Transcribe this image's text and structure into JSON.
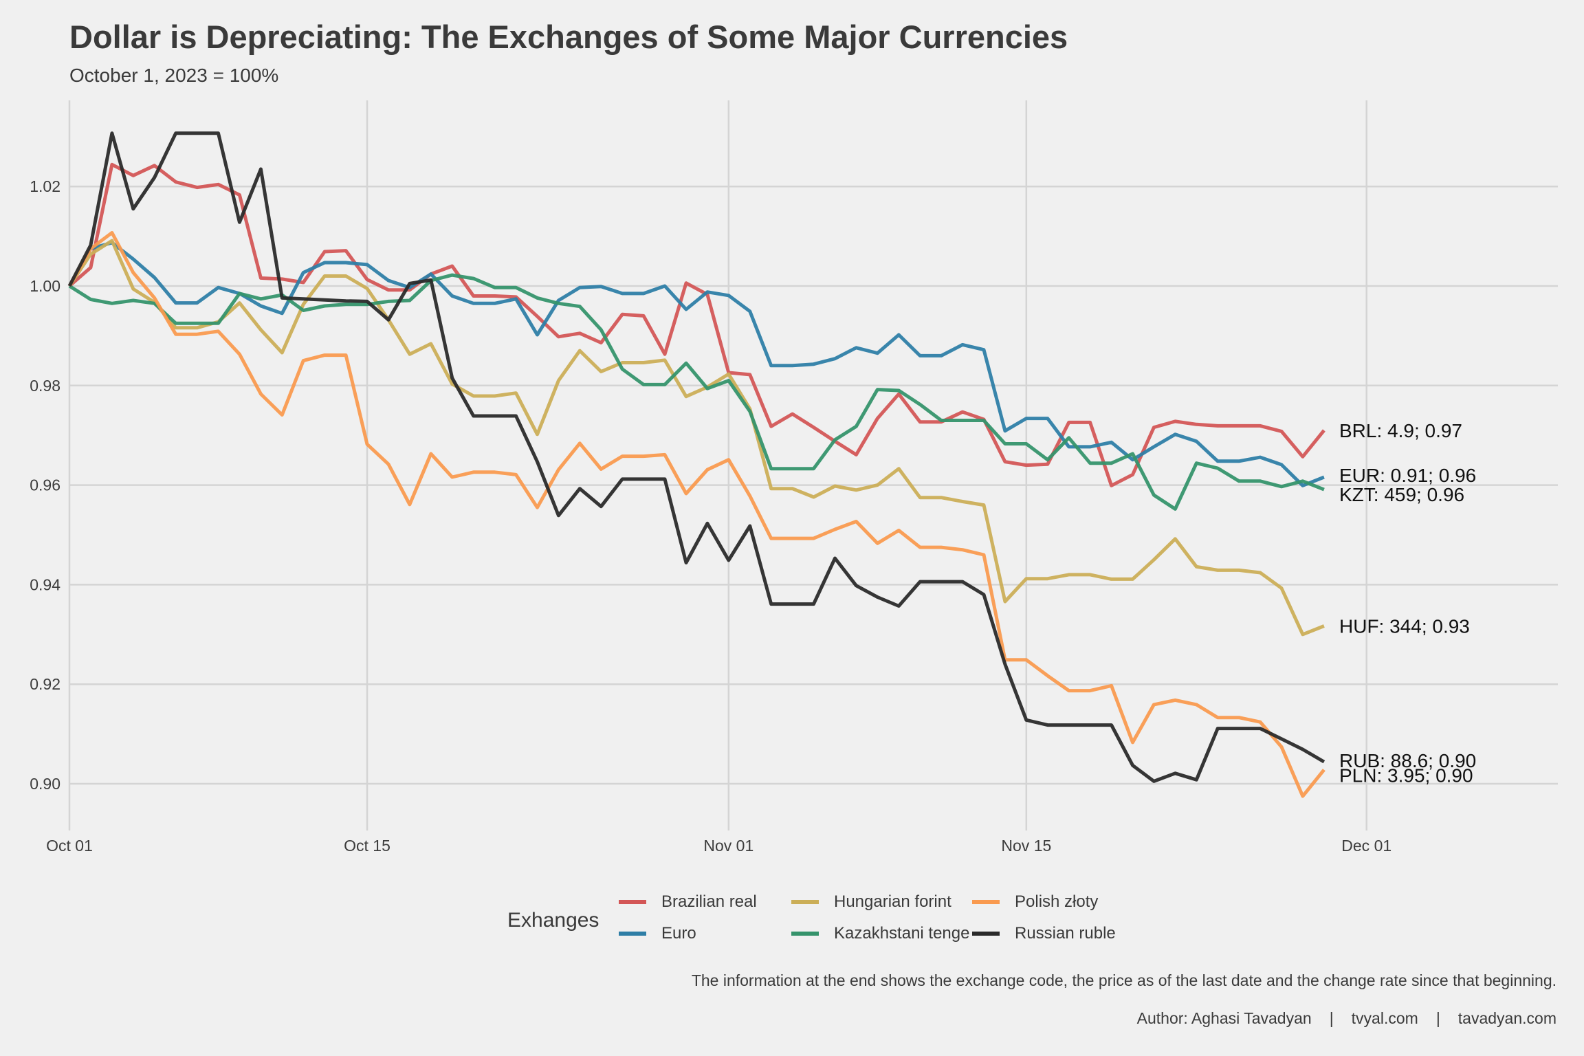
{
  "header": {
    "title": "Dollar is Depreciating: The Exchanges of Some Major Currencies",
    "subtitle": "October 1, 2023 = 100%"
  },
  "caption": {
    "note": "The information at the end shows the exchange code, the price as of the last date and the change rate since that beginning.",
    "author": "Author: Aghasi Tavadyan",
    "separator": "|",
    "site1": "tvyal.com",
    "site2": "tavadyan.com"
  },
  "legend": {
    "title": "Exhanges",
    "items": [
      {
        "label": "Brazilian real",
        "color": "#D35656"
      },
      {
        "label": "Euro",
        "color": "#2E7EA6"
      },
      {
        "label": "Hungarian forint",
        "color": "#CBAE57"
      },
      {
        "label": "Kazakhstani tenge",
        "color": "#35936B"
      },
      {
        "label": "Polish złoty",
        "color": "#F99A4F"
      },
      {
        "label": "Russian ruble",
        "color": "#2A2A2A"
      }
    ]
  },
  "chart_data": {
    "type": "line",
    "title": "Dollar is Depreciating: The Exchanges of Some Major Currencies",
    "subtitle": "October 1, 2023 = 100%",
    "xlabel": "",
    "ylabel": "",
    "x_start_date": "2023-10-01",
    "x_unit": "days since Oct 01",
    "x": [
      0,
      1,
      2,
      3,
      4,
      5,
      6,
      7,
      8,
      9,
      10,
      11,
      12,
      13,
      14,
      15,
      16,
      17,
      18,
      19,
      20,
      21,
      22,
      23,
      24,
      25,
      26,
      27,
      28,
      29,
      30,
      31,
      32,
      33,
      34,
      35,
      36,
      37,
      38,
      39,
      40,
      41,
      42,
      43,
      44,
      45,
      46,
      47,
      48,
      49,
      50,
      51,
      52,
      53,
      54,
      55,
      56,
      57,
      58,
      59
    ],
    "xlim": [
      0,
      68
    ],
    "ylim": [
      0.892,
      1.034
    ],
    "x_ticks": [
      {
        "day": 0,
        "label": "Oct 01"
      },
      {
        "day": 14,
        "label": "Oct 15"
      },
      {
        "day": 31,
        "label": "Nov 01"
      },
      {
        "day": 45,
        "label": "Nov 15"
      },
      {
        "day": 61,
        "label": "Dec 01"
      }
    ],
    "y_ticks": [
      {
        "value": 0.9,
        "label": "0.90"
      },
      {
        "value": 0.92,
        "label": "0.92"
      },
      {
        "value": 0.94,
        "label": "0.94"
      },
      {
        "value": 0.96,
        "label": "0.96"
      },
      {
        "value": 0.98,
        "label": "0.98"
      },
      {
        "value": 1.0,
        "label": "1.00"
      },
      {
        "value": 1.02,
        "label": "1.02"
      }
    ],
    "grid": true,
    "legend_position": "bottom",
    "series": [
      {
        "name": "Brazilian real",
        "code": "BRL",
        "color": "#D35656",
        "end_label": "BRL:  4.9; 0.97",
        "values": [
          1.0,
          1.0037,
          1.0244,
          1.0222,
          1.0242,
          1.0209,
          1.0198,
          1.0204,
          1.0183,
          1.0016,
          1.0014,
          1.0007,
          1.0069,
          1.0071,
          1.0013,
          0.9992,
          0.9992,
          1.0024,
          1.004,
          0.998,
          0.998,
          0.9978,
          0.9939,
          0.9898,
          0.9905,
          0.9886,
          0.9943,
          0.994,
          0.9863,
          1.0006,
          0.9983,
          0.9826,
          0.9822,
          0.9718,
          0.9743,
          0.9716,
          0.9688,
          0.9661,
          0.9734,
          0.9783,
          0.9727,
          0.9727,
          0.9747,
          0.9732,
          0.9647,
          0.964,
          0.9642,
          0.9726,
          0.9726,
          0.9599,
          0.9621,
          0.9716,
          0.9728,
          0.9722,
          0.9719,
          0.9719,
          0.9719,
          0.9708,
          0.9657,
          0.971
        ]
      },
      {
        "name": "Euro",
        "code": "EUR",
        "color": "#2E7EA6",
        "end_label": "EUR: 0.91; 0.96",
        "values": [
          1.0,
          1.0075,
          1.0087,
          1.0054,
          1.0017,
          0.9966,
          0.9966,
          0.9997,
          0.9985,
          0.996,
          0.9945,
          1.0027,
          1.0047,
          1.0047,
          1.0043,
          1.0011,
          0.9997,
          1.0024,
          0.998,
          0.9965,
          0.9965,
          0.9974,
          0.9902,
          0.9971,
          0.9997,
          0.9999,
          0.9985,
          0.9985,
          1.0,
          0.9953,
          0.9988,
          0.9981,
          0.9949,
          0.984,
          0.984,
          0.9843,
          0.9854,
          0.9876,
          0.9865,
          0.9902,
          0.986,
          0.986,
          0.9882,
          0.9872,
          0.9709,
          0.9734,
          0.9734,
          0.9677,
          0.9677,
          0.9686,
          0.9651,
          0.9677,
          0.9702,
          0.9688,
          0.9648,
          0.9648,
          0.9656,
          0.9641,
          0.9599,
          0.9616
        ]
      },
      {
        "name": "Hungarian forint",
        "code": "HUF",
        "color": "#CBAE57",
        "end_label": "HUF:  344; 0.93",
        "values": [
          1.0,
          1.0064,
          1.0091,
          0.9994,
          0.9967,
          0.9916,
          0.9916,
          0.9928,
          0.9966,
          0.9912,
          0.9866,
          0.9963,
          1.002,
          1.002,
          0.9995,
          0.9932,
          0.9863,
          0.9884,
          0.9803,
          0.9779,
          0.9779,
          0.9785,
          0.9702,
          0.981,
          0.987,
          0.9828,
          0.9846,
          0.9846,
          0.9851,
          0.9778,
          0.9797,
          0.9823,
          0.9753,
          0.9593,
          0.9593,
          0.9576,
          0.9598,
          0.959,
          0.96,
          0.9633,
          0.9575,
          0.9575,
          0.9567,
          0.956,
          0.9366,
          0.9412,
          0.9412,
          0.942,
          0.942,
          0.9411,
          0.9411,
          0.945,
          0.9492,
          0.9436,
          0.9429,
          0.9429,
          0.9424,
          0.9393,
          0.93,
          0.9317
        ]
      },
      {
        "name": "Kazakhstani tenge",
        "code": "KZT",
        "color": "#35936B",
        "end_label": "KZT:  459; 0.96",
        "values": [
          1.0,
          0.9973,
          0.9965,
          0.9971,
          0.9965,
          0.9925,
          0.9925,
          0.9925,
          0.9985,
          0.9974,
          0.9982,
          0.9951,
          0.996,
          0.9963,
          0.9963,
          0.9969,
          0.9971,
          1.0011,
          1.0022,
          1.0015,
          0.9997,
          0.9997,
          0.9976,
          0.9965,
          0.9959,
          0.9912,
          0.9833,
          0.9802,
          0.9802,
          0.9845,
          0.9794,
          0.981,
          0.9748,
          0.9633,
          0.9633,
          0.9633,
          0.9691,
          0.9718,
          0.9792,
          0.979,
          0.9762,
          0.973,
          0.973,
          0.973,
          0.9683,
          0.9683,
          0.9651,
          0.9695,
          0.9644,
          0.9644,
          0.9663,
          0.958,
          0.9552,
          0.9644,
          0.9634,
          0.9608,
          0.9608,
          0.9597,
          0.9608,
          0.9591
        ]
      },
      {
        "name": "Polish złoty",
        "code": "PLN",
        "color": "#F99A4F",
        "end_label": "PLN: 3.95; 0.90",
        "values": [
          1.0,
          1.0075,
          1.0107,
          1.0027,
          0.9976,
          0.9903,
          0.9903,
          0.9909,
          0.9863,
          0.9783,
          0.9741,
          0.985,
          0.9861,
          0.9861,
          0.9682,
          0.9642,
          0.9561,
          0.9663,
          0.9616,
          0.9626,
          0.9626,
          0.9621,
          0.9555,
          0.9631,
          0.9684,
          0.9632,
          0.9658,
          0.9658,
          0.9661,
          0.9583,
          0.9631,
          0.9651,
          0.9578,
          0.9493,
          0.9493,
          0.9493,
          0.9511,
          0.9527,
          0.9483,
          0.9509,
          0.9475,
          0.9475,
          0.947,
          0.946,
          0.9249,
          0.9249,
          0.9217,
          0.9187,
          0.9187,
          0.9197,
          0.9083,
          0.9159,
          0.9168,
          0.9159,
          0.9133,
          0.9133,
          0.9124,
          0.9074,
          0.8975,
          0.9028
        ]
      },
      {
        "name": "Russian ruble",
        "code": "RUB",
        "color": "#2A2A2A",
        "end_label": "RUB: 88.6; 0.90",
        "values": [
          1.0,
          1.0082,
          1.0307,
          1.0155,
          1.0218,
          1.0307,
          1.0307,
          1.0307,
          1.0128,
          1.0235,
          0.9976,
          0.9974,
          0.9972,
          0.997,
          0.9969,
          0.9932,
          1.0005,
          1.0012,
          0.9815,
          0.9739,
          0.9739,
          0.9739,
          0.9647,
          0.9539,
          0.9593,
          0.9557,
          0.9612,
          0.9612,
          0.9612,
          0.9444,
          0.9523,
          0.9449,
          0.9518,
          0.9361,
          0.9361,
          0.9361,
          0.9453,
          0.9398,
          0.9375,
          0.9357,
          0.9406,
          0.9406,
          0.9406,
          0.938,
          0.924,
          0.9128,
          0.9118,
          0.9118,
          0.9118,
          0.9118,
          0.9037,
          0.9005,
          0.9021,
          0.9008,
          0.9111,
          0.9111,
          0.9111,
          0.909,
          0.9069,
          0.9044
        ]
      }
    ],
    "end_labels": [
      {
        "code": "BRL",
        "text": "BRL:  4.9; 0.97",
        "price": 4.9,
        "change": 0.97
      },
      {
        "code": "EUR",
        "text": "EUR: 0.91; 0.96",
        "price": 0.91,
        "change": 0.96
      },
      {
        "code": "KZT",
        "text": "KZT:  459; 0.96",
        "price": 459,
        "change": 0.96
      },
      {
        "code": "HUF",
        "text": "HUF:  344; 0.93",
        "price": 344,
        "change": 0.93
      },
      {
        "code": "RUB",
        "text": "RUB: 88.6; 0.90",
        "price": 88.6,
        "change": 0.9
      },
      {
        "code": "PLN",
        "text": "PLN: 3.95; 0.90",
        "price": 3.95,
        "change": 0.9
      }
    ]
  }
}
